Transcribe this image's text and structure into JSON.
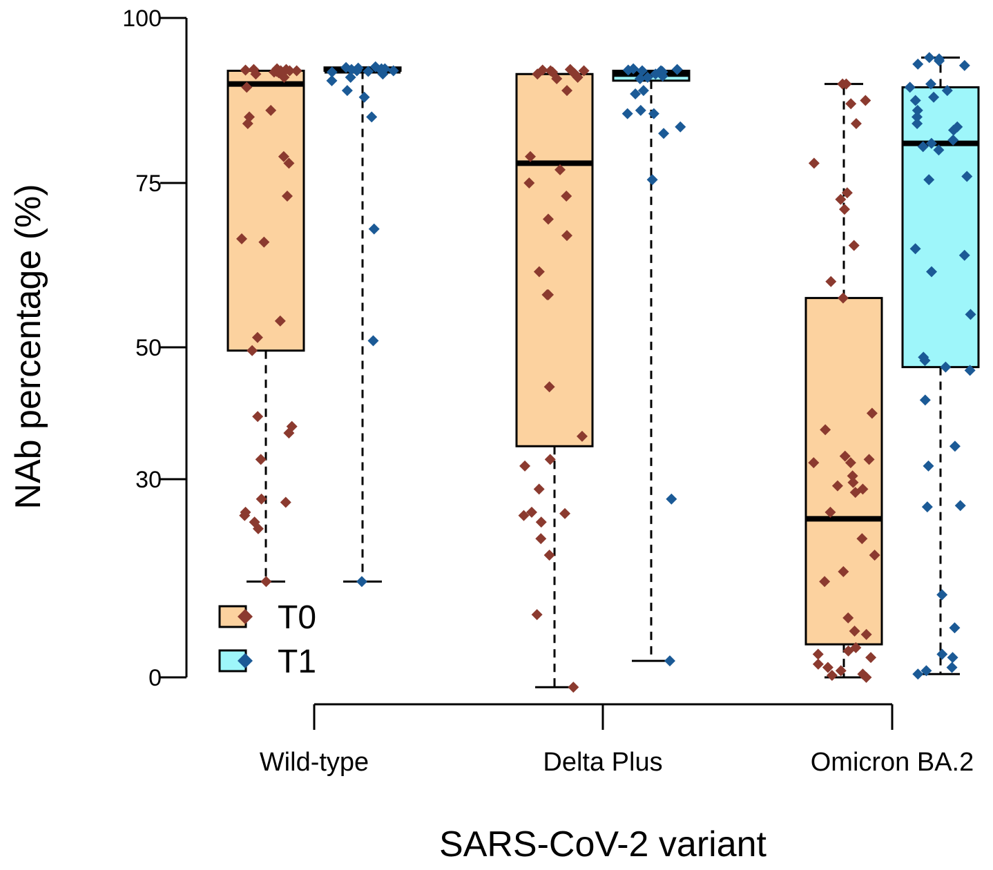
{
  "chart_data": {
    "type": "boxplot",
    "title": "",
    "xlabel": "SARS-CoV-2 variant",
    "ylabel": "NAb percentage (%)",
    "ylim": [
      -2,
      100
    ],
    "yscale_note": "non-linear: 0-30 and 30-50 compressed/expanded segments as drawn",
    "yticks": [
      0,
      30,
      50,
      75,
      100
    ],
    "ytick_labels": [
      "0",
      "30",
      "50",
      "75",
      "100"
    ],
    "categories": [
      "Wild-type",
      "Delta Plus",
      "Omicron BA.2"
    ],
    "legend": {
      "position": "bottom-left",
      "entries": [
        {
          "name": "T0",
          "fill": "#fcd29f",
          "marker": "#8b3a2f"
        },
        {
          "name": "T1",
          "fill": "#9ef6fa",
          "marker": "#1b5a96"
        }
      ]
    },
    "series": [
      {
        "name": "T0",
        "box_fill": "#fcd29f",
        "point_color": "#8b3a2f",
        "boxes": [
          {
            "category": "Wild-type",
            "whisker_low": 14.5,
            "q1": 49.5,
            "median": 90,
            "q3": 92,
            "whisker_high": 92
          },
          {
            "category": "Delta Plus",
            "whisker_low": -1.5,
            "q1": 35,
            "median": 78,
            "q3": 91.5,
            "whisker_high": 91.5
          },
          {
            "category": "Omicron BA.2",
            "whisker_low": 0,
            "q1": 5,
            "median": 24,
            "q3": 57.5,
            "whisker_high": 90
          }
        ],
        "points": [
          {
            "category": "Wild-type",
            "values": [
              92,
              92.2,
              91.8,
              92,
              92.3,
              91.9,
              92.1,
              92,
              91.7,
              92.2,
              92,
              91.5,
              91,
              89.5,
              86,
              85,
              84,
              79,
              78,
              73,
              66.5,
              66,
              54,
              51.5,
              49.5,
              39.5,
              38,
              37,
              33,
              27,
              26.5,
              25,
              24.5,
              23.5,
              22.5,
              14.5
            ]
          },
          {
            "category": "Delta Plus",
            "values": [
              92,
              91.8,
              92.2,
              91.5,
              92,
              91,
              91.6,
              92.1,
              90.8,
              91.3,
              89,
              79,
              77,
              75,
              73,
              69.5,
              67,
              61.5,
              58,
              58,
              44,
              36.5,
              33,
              32,
              28.5,
              25,
              24.8,
              24.5,
              23.5,
              21,
              18.5,
              9.5,
              -1.5
            ]
          },
          {
            "category": "Omicron BA.2",
            "values": [
              90,
              90,
              87.5,
              87,
              84,
              78,
              73.5,
              72.5,
              71,
              65.5,
              60,
              57.5,
              40,
              37.5,
              33.5,
              33,
              32.5,
              32.5,
              30.5,
              29.5,
              29,
              28.5,
              28,
              25,
              21,
              18.5,
              16,
              14.5,
              9,
              7,
              6.5,
              4,
              4.5,
              3.5,
              3,
              2,
              1.5,
              1,
              0.5,
              0.3,
              0
            ]
          }
        ]
      },
      {
        "name": "T1",
        "box_fill": "#9ef6fa",
        "point_color": "#1b5a96",
        "boxes": [
          {
            "category": "Wild-type",
            "whisker_low": 14.5,
            "q1": 92,
            "median": 92,
            "q3": 92.5,
            "whisker_high": 92.5
          },
          {
            "category": "Delta Plus",
            "whisker_low": 2.5,
            "q1": 90.5,
            "median": 91.5,
            "q3": 92,
            "whisker_high": 92
          },
          {
            "category": "Omicron BA.2",
            "whisker_low": 0.5,
            "q1": 47,
            "median": 81,
            "q3": 89.5,
            "whisker_high": 94
          }
        ],
        "points": [
          {
            "category": "Wild-type",
            "values": [
              92.5,
              92.3,
              92,
              92.4,
              91.8,
              92.2,
              92.6,
              91.5,
              92.1,
              92,
              91.9,
              92.3,
              91,
              90.5,
              89,
              88,
              85,
              68,
              51,
              14.5
            ]
          },
          {
            "category": "Delta Plus",
            "values": [
              92,
              92.2,
              91.8,
              92.1,
              91.5,
              92.3,
              91.9,
              91,
              90.8,
              91.2,
              92,
              89,
              88.5,
              86,
              85.5,
              85.5,
              83.5,
              82.5,
              75.5,
              27,
              2.5
            ]
          },
          {
            "category": "Omicron BA.2",
            "values": [
              94,
              93.8,
              93.5,
              93,
              92.8,
              90,
              89.5,
              89,
              88,
              87.5,
              86,
              85,
              84,
              83.5,
              83,
              81.5,
              81,
              80.5,
              80,
              76,
              75.5,
              65,
              64,
              61.5,
              55,
              48.5,
              48,
              47,
              46.5,
              42,
              35,
              32,
              26,
              25.8,
              12.5,
              7.5,
              3.5,
              3,
              1.5,
              1,
              0.5
            ]
          }
        ]
      }
    ]
  }
}
